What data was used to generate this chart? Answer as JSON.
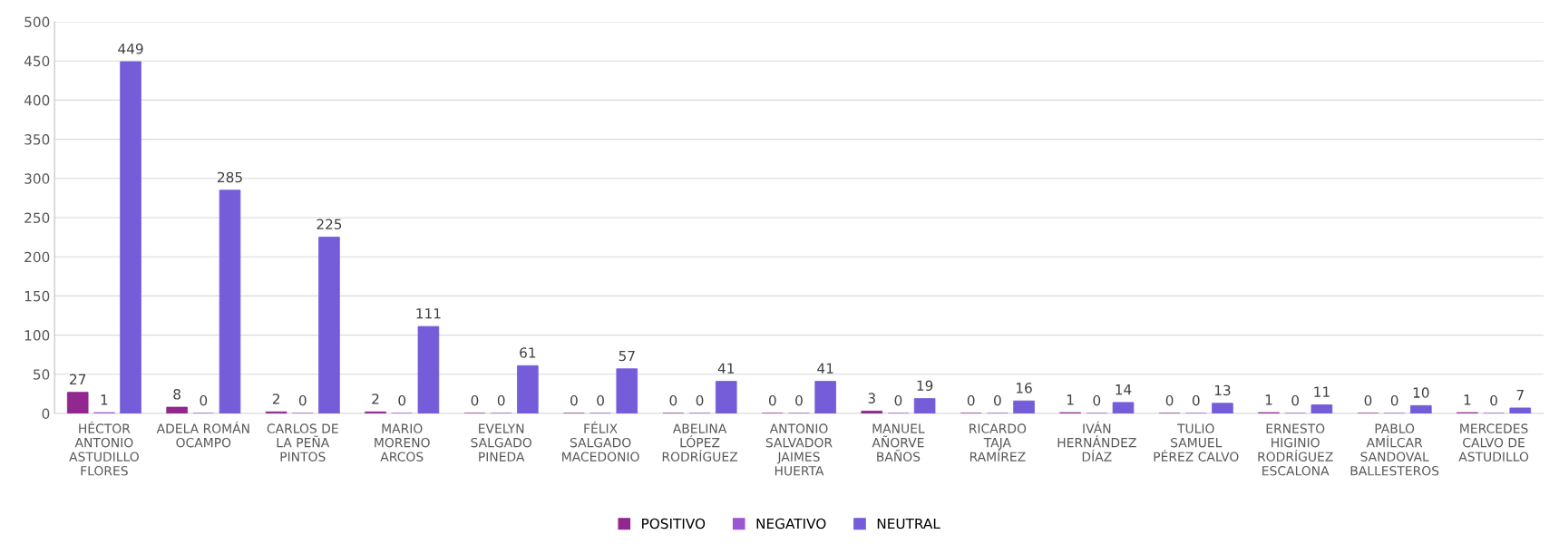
{
  "chart_data": {
    "type": "bar",
    "categories": [
      "HÉCTOR ANTONIO ASTUDILLO FLORES",
      "ADELA ROMÁN OCAMPO",
      "CARLOS DE LA PEÑA PINTOS",
      "MARIO MORENO ARCOS",
      "EVELYN SALGADO PINEDA",
      "FÉLIX SALGADO MACEDONIO",
      "ABELINA LÓPEZ RODRÍGUEZ",
      "ANTONIO SALVADOR JAIMES HUERTA",
      "MANUEL AÑORVE BAÑOS",
      "RICARDO TAJA RAMÍREZ",
      "IVÁN HERNÁNDEZ DÍAZ",
      "TULIO SAMUEL PÉREZ CALVO",
      "ERNESTO HIGINIO RODRÍGUEZ ESCALONA",
      "PABLO AMÍLCAR SANDOVAL BALLESTEROS",
      "MERCEDES CALVO DE ASTUDILLO"
    ],
    "series": [
      {
        "name": "POSITIVO",
        "color": "#92278f",
        "values": [
          27,
          8,
          2,
          2,
          0,
          0,
          0,
          0,
          3,
          0,
          1,
          0,
          1,
          0,
          1
        ]
      },
      {
        "name": "NEGATIVO",
        "color": "#9b57d3",
        "values": [
          1,
          0,
          0,
          0,
          0,
          0,
          0,
          0,
          0,
          0,
          0,
          0,
          0,
          0,
          0
        ]
      },
      {
        "name": "NEUTRAL",
        "color": "#755dd9",
        "values": [
          449,
          285,
          225,
          111,
          61,
          57,
          41,
          41,
          19,
          16,
          14,
          13,
          11,
          10,
          7
        ]
      }
    ],
    "ylim": [
      0,
      500
    ],
    "yticks": [
      0,
      50,
      100,
      150,
      200,
      250,
      300,
      350,
      400,
      450,
      500
    ],
    "grid": "y",
    "legend": "bottom",
    "data_labels": true
  }
}
